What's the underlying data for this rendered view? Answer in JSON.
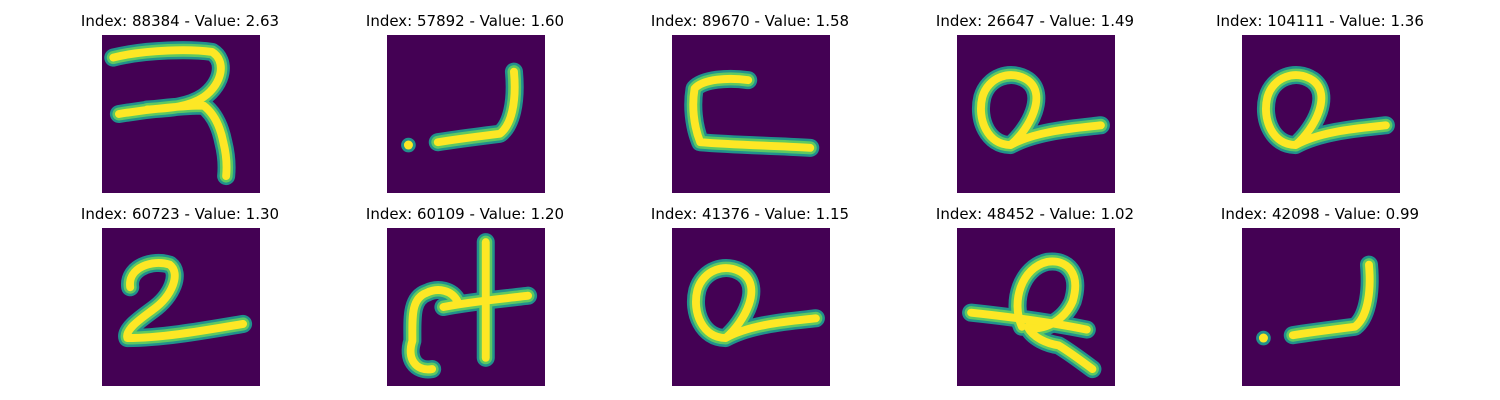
{
  "colors": {
    "background": "#440154",
    "stroke_core": "#fde725",
    "stroke_mid": "#5ec962",
    "stroke_edge": "#21918c"
  },
  "panels": [
    {
      "title": "Index: 88384 - Value: 2.63",
      "glyph": "ra"
    },
    {
      "title": "Index: 57892 - Value: 1.60",
      "glyph": "dot-hook"
    },
    {
      "title": "Index: 89670 - Value: 1.58",
      "glyph": "c-line"
    },
    {
      "title": "Index: 26647 - Value: 1.49",
      "glyph": "loop-tail"
    },
    {
      "title": "Index: 104111 - Value: 1.36",
      "glyph": "loop-tail"
    },
    {
      "title": "Index: 60723 - Value: 1.30",
      "glyph": "two-tail"
    },
    {
      "title": "Index: 60109 - Value: 1.20",
      "glyph": "cross"
    },
    {
      "title": "Index: 41376 - Value: 1.15",
      "glyph": "loop-tail"
    },
    {
      "title": "Index: 48452 - Value: 1.02",
      "glyph": "loop-bar"
    },
    {
      "title": "Index: 42098 - Value: 0.99",
      "glyph": "dot-hook"
    }
  ]
}
